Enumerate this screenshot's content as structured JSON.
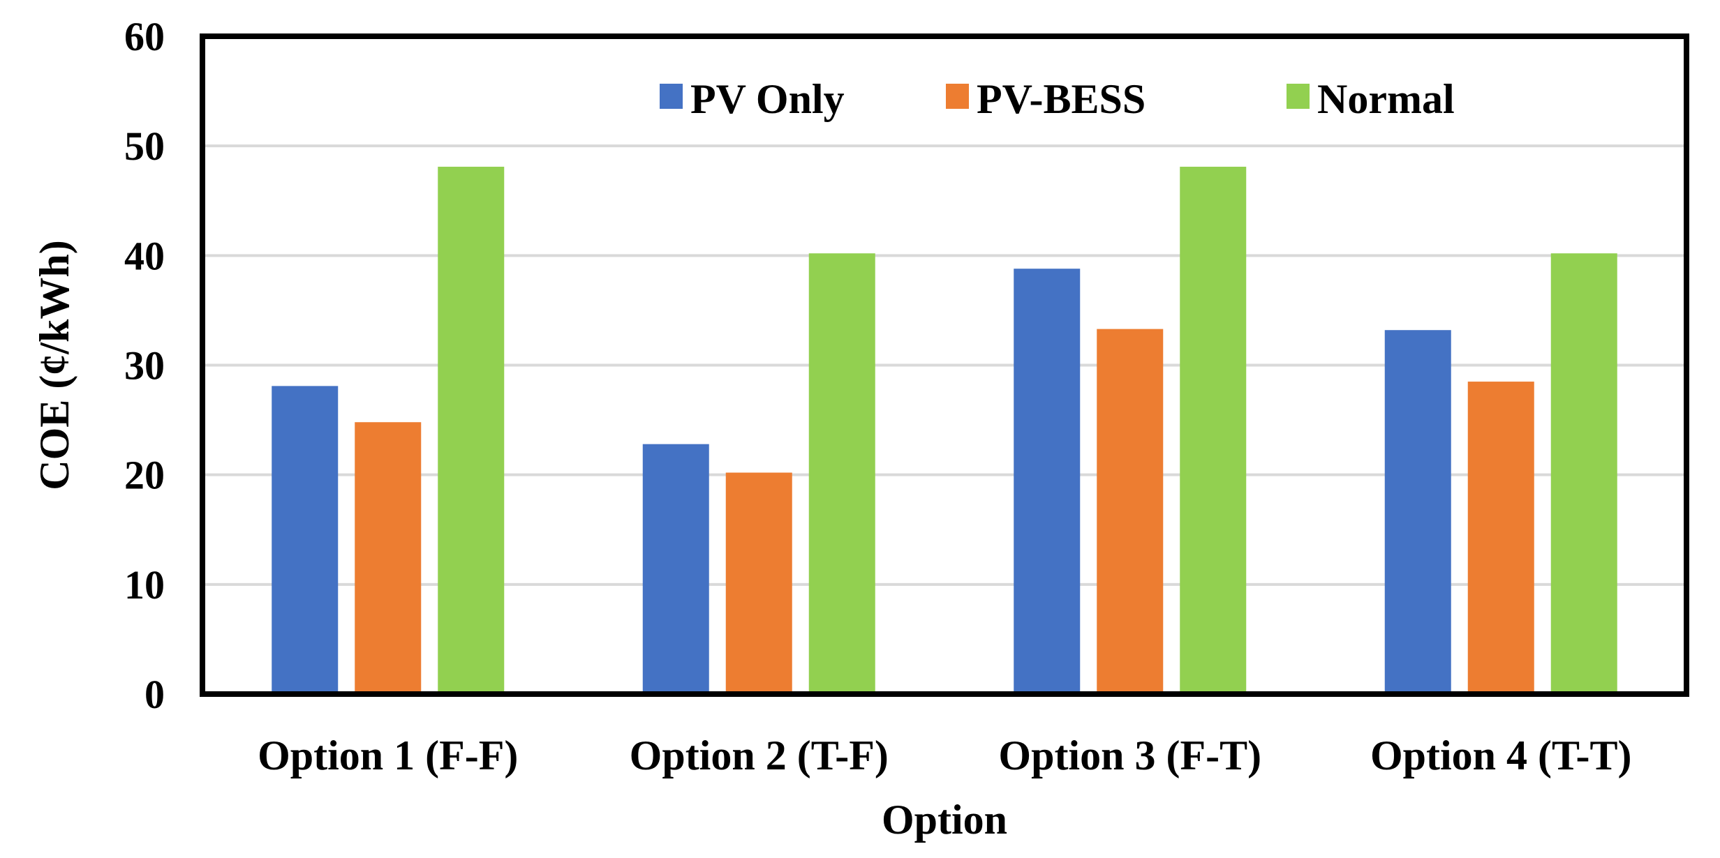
{
  "chart_data": {
    "type": "bar",
    "title": "",
    "xlabel": "Option",
    "ylabel": "COE (¢/kWh)",
    "categories": [
      "Option 1 (F-F)",
      "Option 2 (T-F)",
      "Option 3 (F-T)",
      "Option 4 (T-T)"
    ],
    "series": [
      {
        "name": "PV Only",
        "color": "#4472C4",
        "values": [
          28.1,
          22.8,
          38.8,
          33.2
        ]
      },
      {
        "name": "PV-BESS",
        "color": "#ED7D31",
        "values": [
          24.8,
          20.2,
          33.3,
          28.5
        ]
      },
      {
        "name": "Normal",
        "color": "#92D050",
        "values": [
          48.1,
          40.2,
          48.1,
          40.2
        ]
      }
    ],
    "ylim": [
      0,
      60
    ],
    "yticks": [
      0,
      10,
      20,
      30,
      40,
      50,
      60
    ],
    "grid": true,
    "legend_position": "top-center"
  }
}
